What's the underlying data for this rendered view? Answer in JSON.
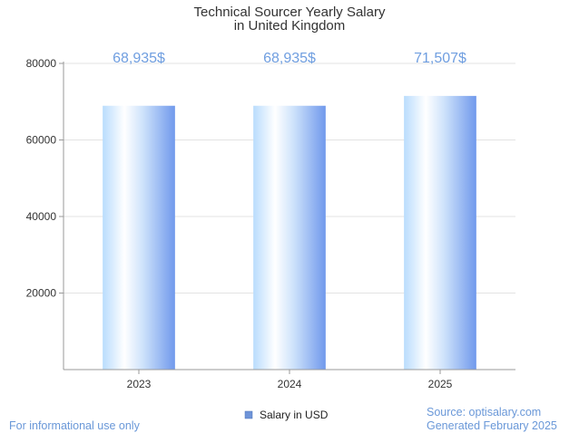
{
  "chart_data": {
    "type": "bar",
    "title_lines": [
      "Technical Sourcer Yearly Salary",
      "in United Kingdom"
    ],
    "categories": [
      "2023",
      "2024",
      "2025"
    ],
    "series": [
      {
        "name": "Salary in USD",
        "values": [
          68935,
          68935,
          71507
        ],
        "labels": [
          "68,935$",
          "68,935$",
          "71,507$"
        ]
      }
    ],
    "yticks": [
      "20000",
      "40000",
      "60000",
      "80000"
    ],
    "ylim": [
      0,
      80000
    ],
    "grid": true,
    "legend_position": "bottom-center",
    "colors": {
      "bar_light": "#ffffff",
      "bar_mid": "#b9dcfd",
      "bar_dark": "#7099ec",
      "label": "#6f9ee0",
      "legend_swatch": "#6f94d8"
    }
  },
  "footer": {
    "left": "For informational use only",
    "source": "Source: optisalary.com",
    "generated": "Generated February 2025"
  }
}
